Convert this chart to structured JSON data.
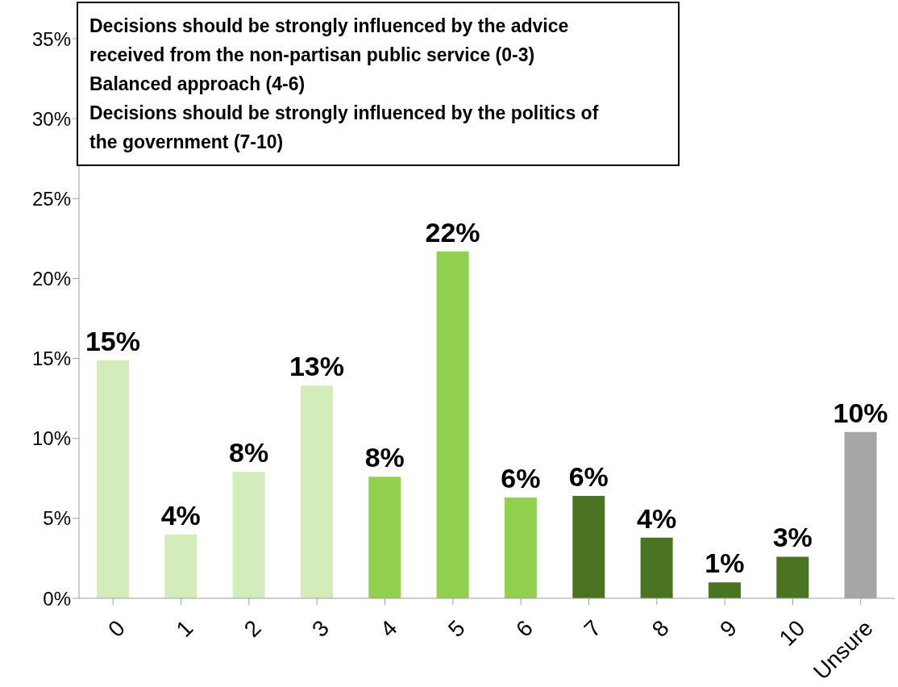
{
  "chart_data": {
    "type": "bar",
    "categories": [
      "0",
      "1",
      "2",
      "3",
      "4",
      "5",
      "6",
      "7",
      "8",
      "9",
      "10",
      "Unsure"
    ],
    "values": [
      14.9,
      4.0,
      7.9,
      13.3,
      7.6,
      21.7,
      6.3,
      6.4,
      3.8,
      1.0,
      2.6,
      10.4
    ],
    "colors": [
      "#d4ecb9",
      "#d4ecb9",
      "#d4ecb9",
      "#d4ecb9",
      "#92d050",
      "#92d050",
      "#92d050",
      "#4a7422",
      "#4a7422",
      "#4a7422",
      "#4a7422",
      "#a6a6a6"
    ],
    "value_labels": [
      "15%",
      "4%",
      "8%",
      "13%",
      "8%",
      "22%",
      "6%",
      "6%",
      "4%",
      "1%",
      "3%",
      "10%"
    ],
    "ylim": [
      0,
      35
    ],
    "yticks": [
      {
        "value": 0,
        "label": "0%"
      },
      {
        "value": 5,
        "label": "5%"
      },
      {
        "value": 10,
        "label": "10%"
      },
      {
        "value": 15,
        "label": "15%"
      },
      {
        "value": 20,
        "label": "20%"
      },
      {
        "value": 25,
        "label": "25%"
      },
      {
        "value": 30,
        "label": "30%"
      },
      {
        "value": 35,
        "label": "35%"
      }
    ],
    "grid": false,
    "annotations": [
      "Decisions should be strongly influenced by the advice received from the non-partisan public service (0-3)",
      "Balanced approach (4-6)",
      "Decisions should be strongly influenced by the politics of the government (7-10)"
    ]
  }
}
